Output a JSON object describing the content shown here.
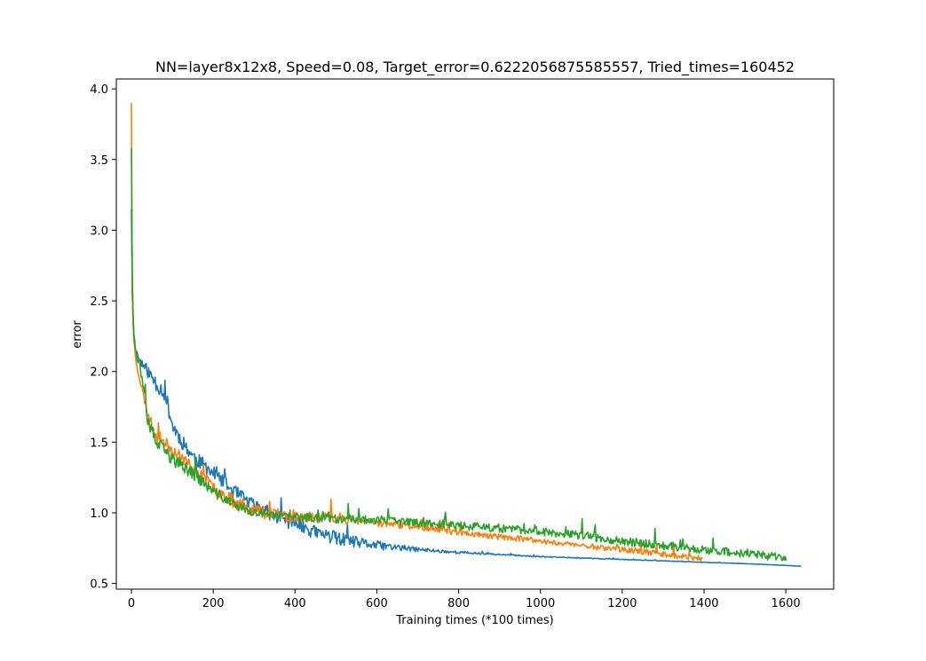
{
  "chart_data": {
    "type": "line",
    "title": "NN=layer8x12x8, Speed=0.08, Target_error=0.6222056875585557, Tried_times=160452",
    "xlabel": "Training times (*100 times)",
    "ylabel": "error",
    "xlim": [
      -37,
      1717
    ],
    "ylim": [
      0.46,
      4.07
    ],
    "xticks": [
      0,
      200,
      400,
      600,
      800,
      1000,
      1200,
      1400,
      1600
    ],
    "yticks": [
      0.5,
      1.0,
      1.5,
      2.0,
      2.5,
      3.0,
      3.5,
      4.0
    ],
    "grid": false,
    "legend": "none",
    "colors": [
      "#1f77b4",
      "#ff7f0e",
      "#2ca02c"
    ],
    "series": [
      {
        "x": [
          0,
          2,
          5,
          10,
          20,
          40,
          60,
          80,
          90,
          100,
          120,
          150,
          200,
          250,
          300,
          350,
          400,
          450,
          500,
          550,
          600,
          650,
          700,
          800,
          900,
          1000,
          1100,
          1200,
          1300,
          1400,
          1500,
          1600,
          1637
        ],
        "y": [
          3.15,
          2.55,
          2.3,
          2.15,
          2.08,
          2.0,
          1.92,
          1.85,
          1.75,
          1.62,
          1.52,
          1.4,
          1.28,
          1.15,
          1.05,
          0.98,
          0.92,
          0.86,
          0.82,
          0.79,
          0.77,
          0.755,
          0.74,
          0.72,
          0.705,
          0.69,
          0.68,
          0.67,
          0.66,
          0.65,
          0.64,
          0.628,
          0.622
        ]
      },
      {
        "x": [
          0,
          2,
          5,
          10,
          20,
          40,
          60,
          80,
          100,
          150,
          200,
          250,
          300,
          350,
          400,
          500,
          600,
          700,
          800,
          900,
          1000,
          1100,
          1200,
          1300,
          1350,
          1395
        ],
        "y": [
          3.9,
          2.55,
          2.25,
          2.1,
          1.95,
          1.7,
          1.55,
          1.5,
          1.45,
          1.32,
          1.18,
          1.08,
          1.02,
          0.99,
          0.97,
          0.96,
          0.93,
          0.9,
          0.86,
          0.83,
          0.8,
          0.77,
          0.74,
          0.71,
          0.69,
          0.675
        ]
      },
      {
        "x": [
          0,
          2,
          5,
          10,
          20,
          40,
          60,
          80,
          100,
          150,
          200,
          250,
          300,
          350,
          400,
          500,
          600,
          700,
          800,
          900,
          1000,
          1100,
          1200,
          1300,
          1400,
          1500,
          1570,
          1600
        ],
        "y": [
          3.58,
          2.7,
          2.3,
          2.15,
          2.05,
          1.65,
          1.5,
          1.44,
          1.38,
          1.28,
          1.15,
          1.06,
          1.0,
          0.98,
          0.97,
          0.96,
          0.95,
          0.93,
          0.91,
          0.89,
          0.87,
          0.84,
          0.8,
          0.77,
          0.74,
          0.71,
          0.69,
          0.685
        ]
      }
    ]
  }
}
